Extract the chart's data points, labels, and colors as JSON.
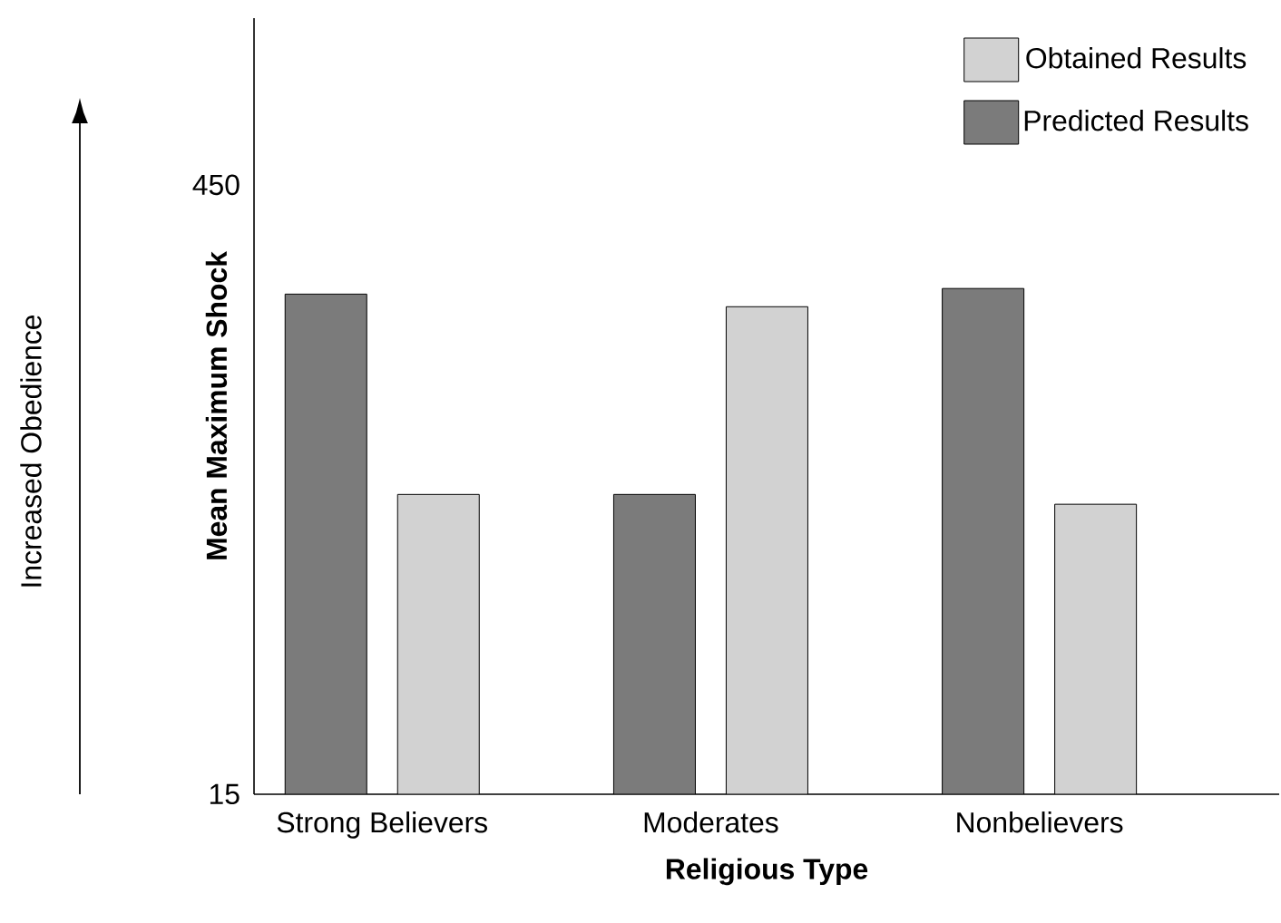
{
  "chart_data": {
    "type": "bar",
    "xlabel": "Religious Type",
    "ylabel": "Mean Maximum Shock",
    "categories": [
      "Strong Believers",
      "Moderates",
      "Nonbelievers"
    ],
    "series": [
      {
        "name": "Predicted Results",
        "color": "#7b7b7b",
        "values": [
          372,
          229,
          376
        ]
      },
      {
        "name": "Obtained Results",
        "color": "#d2d2d2",
        "values": [
          229,
          363,
          222
        ]
      }
    ],
    "ylim": [
      15,
      569
    ],
    "yticks": [
      15,
      450
    ],
    "legend": "top right",
    "annotations": [
      "Increased Obedience"
    ]
  }
}
